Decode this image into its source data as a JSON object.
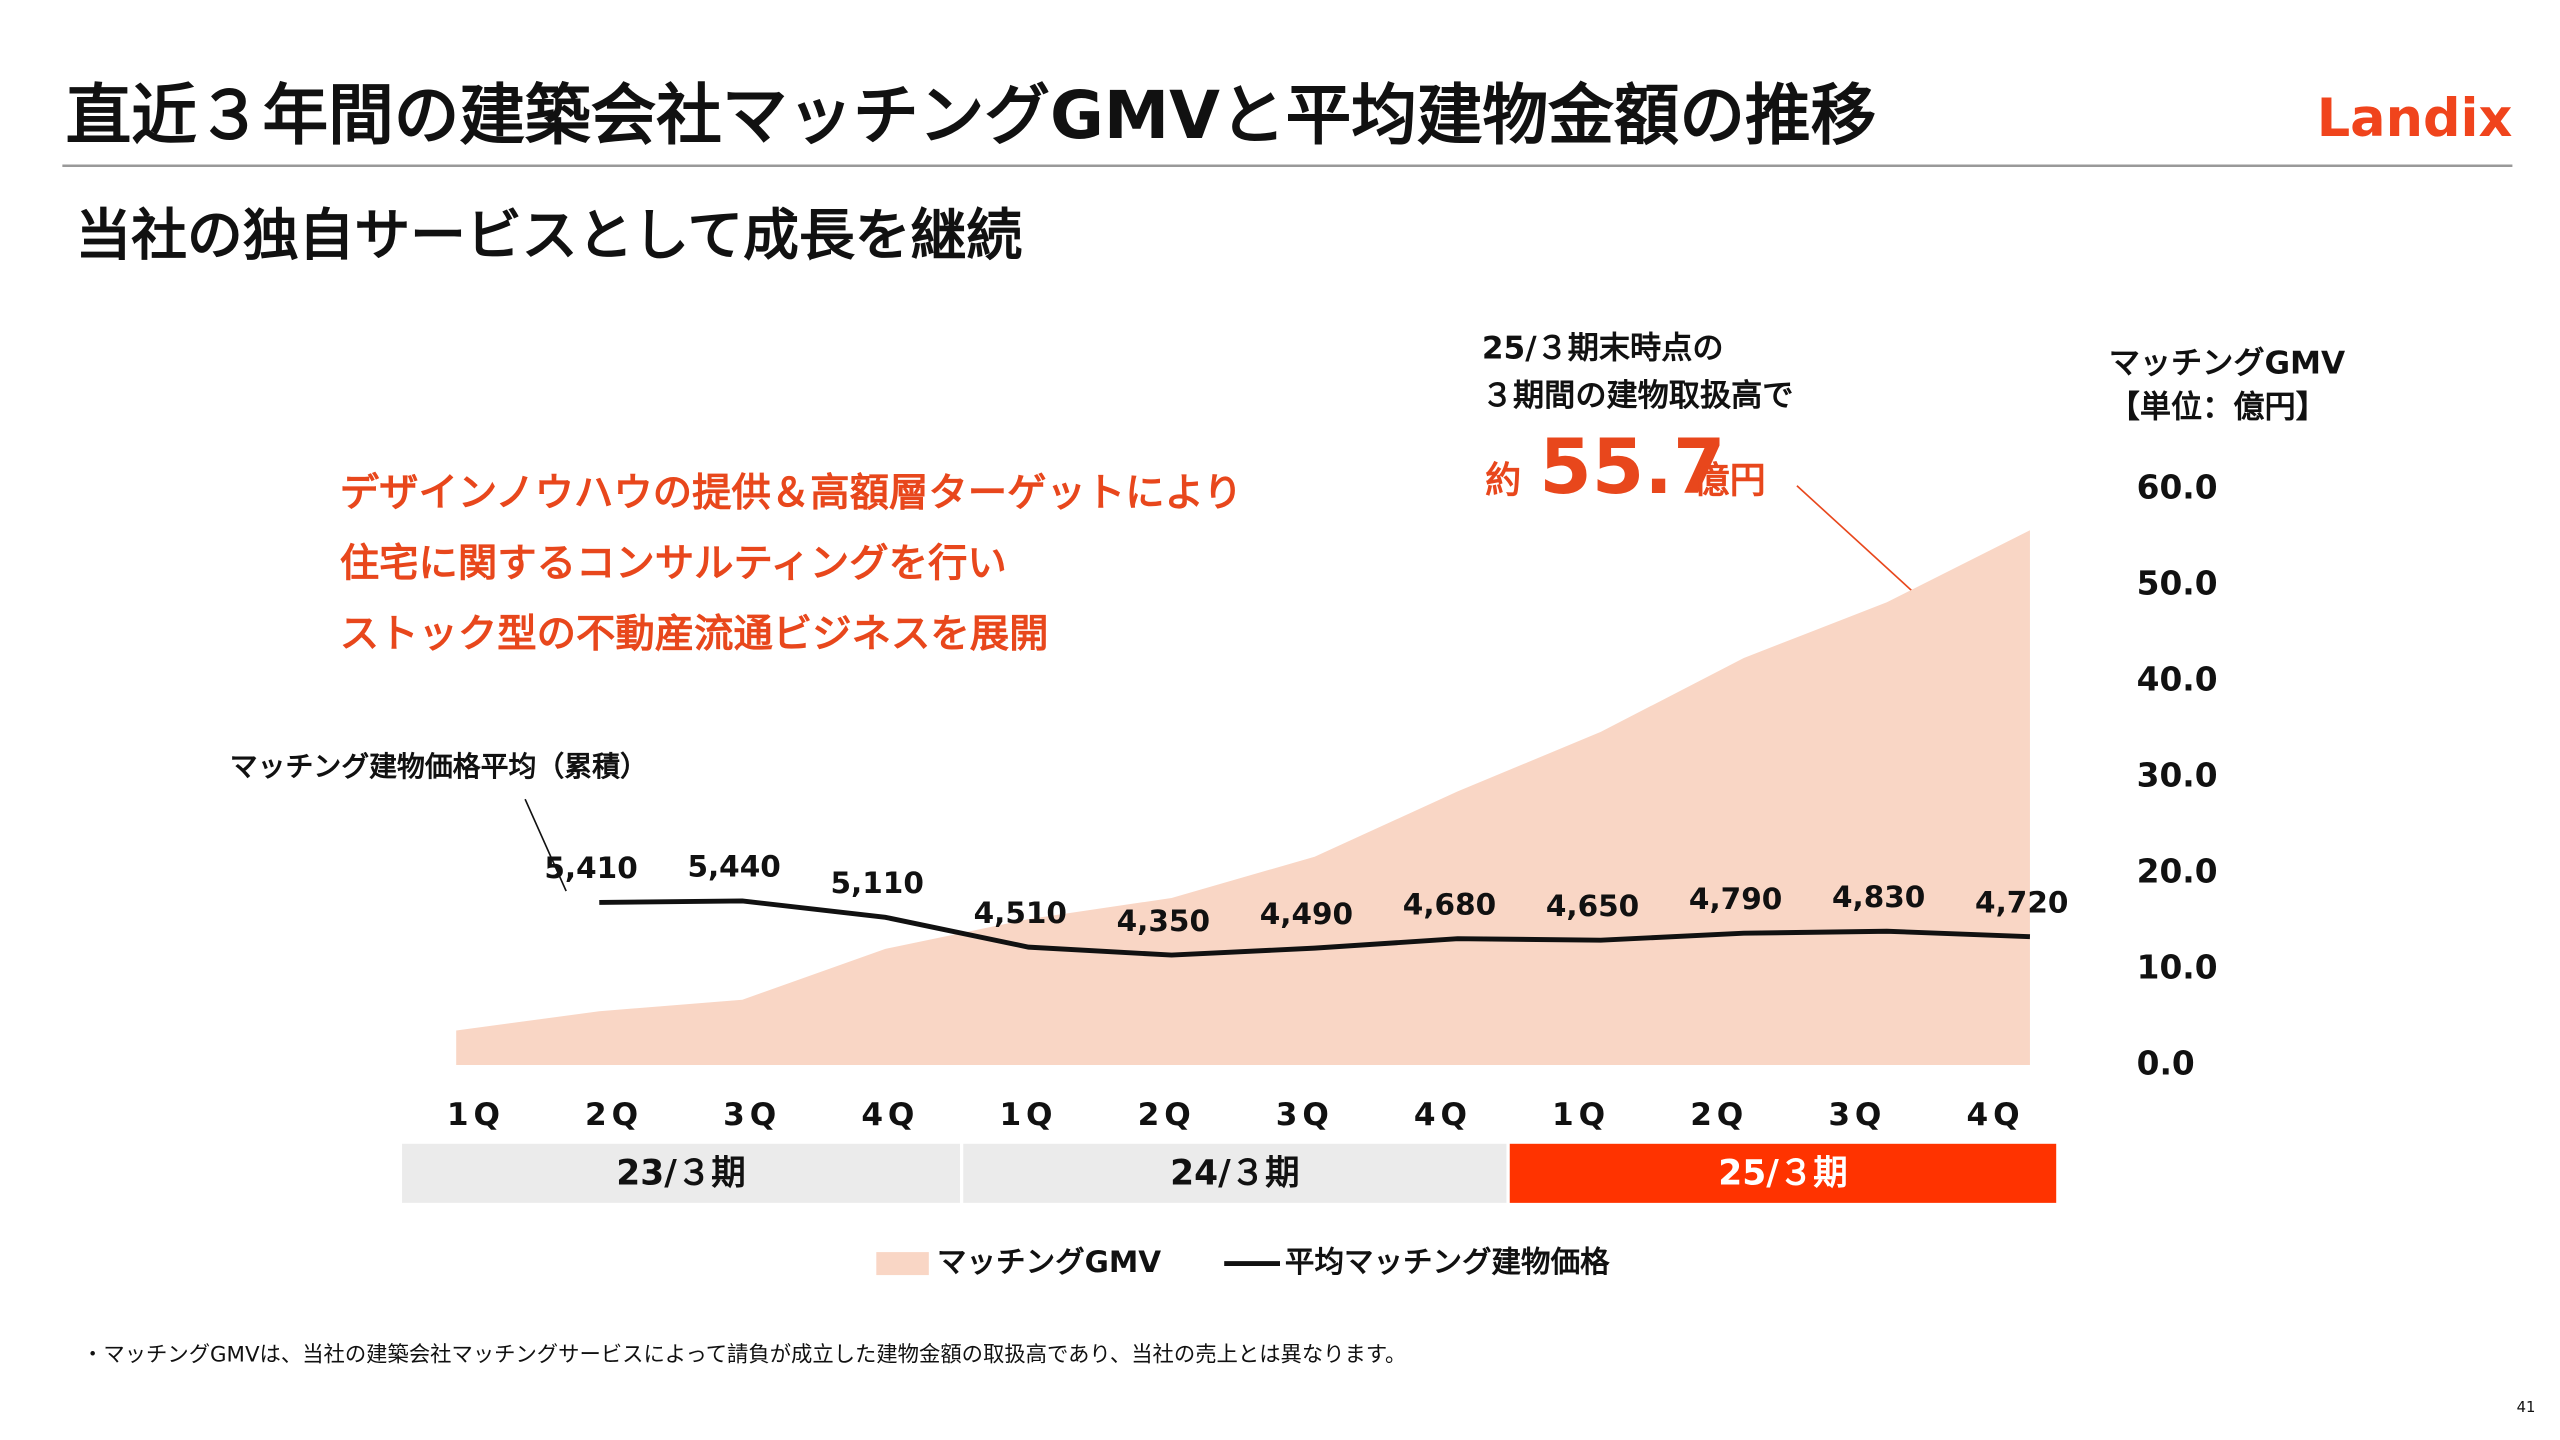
{
  "header": {
    "title": "直近３年間の建築会社マッチングGMVと平均建物金額の推移",
    "logo": "Landix",
    "subtitle": "当社の独自サービスとして成長を継続"
  },
  "callout": [
    "デザインノウハウの提供＆高額層ターゲットにより",
    "住宅に関するコンサルティングを行い",
    "ストック型の不動産流通ビジネスを展開"
  ],
  "highlight": {
    "line1": "25/３期末時点の",
    "line2": "３期間の建物取扱高で",
    "prefix": "約",
    "value": "55.7",
    "suffix": "億円"
  },
  "chart_data": {
    "type": "area-line",
    "categories": [
      "1Q",
      "2Q",
      "3Q",
      "4Q",
      "1Q",
      "2Q",
      "3Q",
      "4Q",
      "1Q",
      "2Q",
      "3Q",
      "4Q"
    ],
    "periods": [
      {
        "label": "23/３期",
        "color": "#ebebeb"
      },
      {
        "label": "24/３期",
        "color": "#ebebeb"
      },
      {
        "label": "25/３期",
        "color": "#ff3300"
      }
    ],
    "y_axis_title": [
      "マッチングGMV",
      "【単位：億円】"
    ],
    "ylim": [
      0,
      60
    ],
    "yticks": [
      {
        "value": 0,
        "label": "0.0"
      },
      {
        "value": 10,
        "label": "10.0"
      },
      {
        "value": 20,
        "label": "20.0"
      },
      {
        "value": 30,
        "label": "30.0"
      },
      {
        "value": 40,
        "label": "40.0"
      },
      {
        "value": 50,
        "label": "50.0"
      },
      {
        "value": 60,
        "label": "60.0"
      }
    ],
    "line_annotation": "マッチング建物価格平均（累積）",
    "series": [
      {
        "name": "マッチングGMV",
        "color": "#f9d6c5",
        "values": [
          3.6,
          5.6,
          6.8,
          12.1,
          15.2,
          17.4,
          21.7,
          28.5,
          34.7,
          42.4,
          48.2,
          55.7
        ]
      },
      {
        "name": "平均マッチング建物価格",
        "color": "#111111",
        "values": [
          null,
          5410,
          5440,
          5110,
          4510,
          4350,
          4490,
          4680,
          4650,
          4790,
          4830,
          4720
        ],
        "value_labels": [
          null,
          "5,410",
          "5,440",
          "5,110",
          "4,510",
          "4,350",
          "4,490",
          "4,680",
          "4,650",
          "4,790",
          "4,830",
          "4,720"
        ]
      }
    ]
  },
  "footnote": "・マッチングGMVは、当社の建築会社マッチングサービスによって請負が成立した建物金額の取扱高であり、当社の売上とは異なります。",
  "page_number": "41"
}
